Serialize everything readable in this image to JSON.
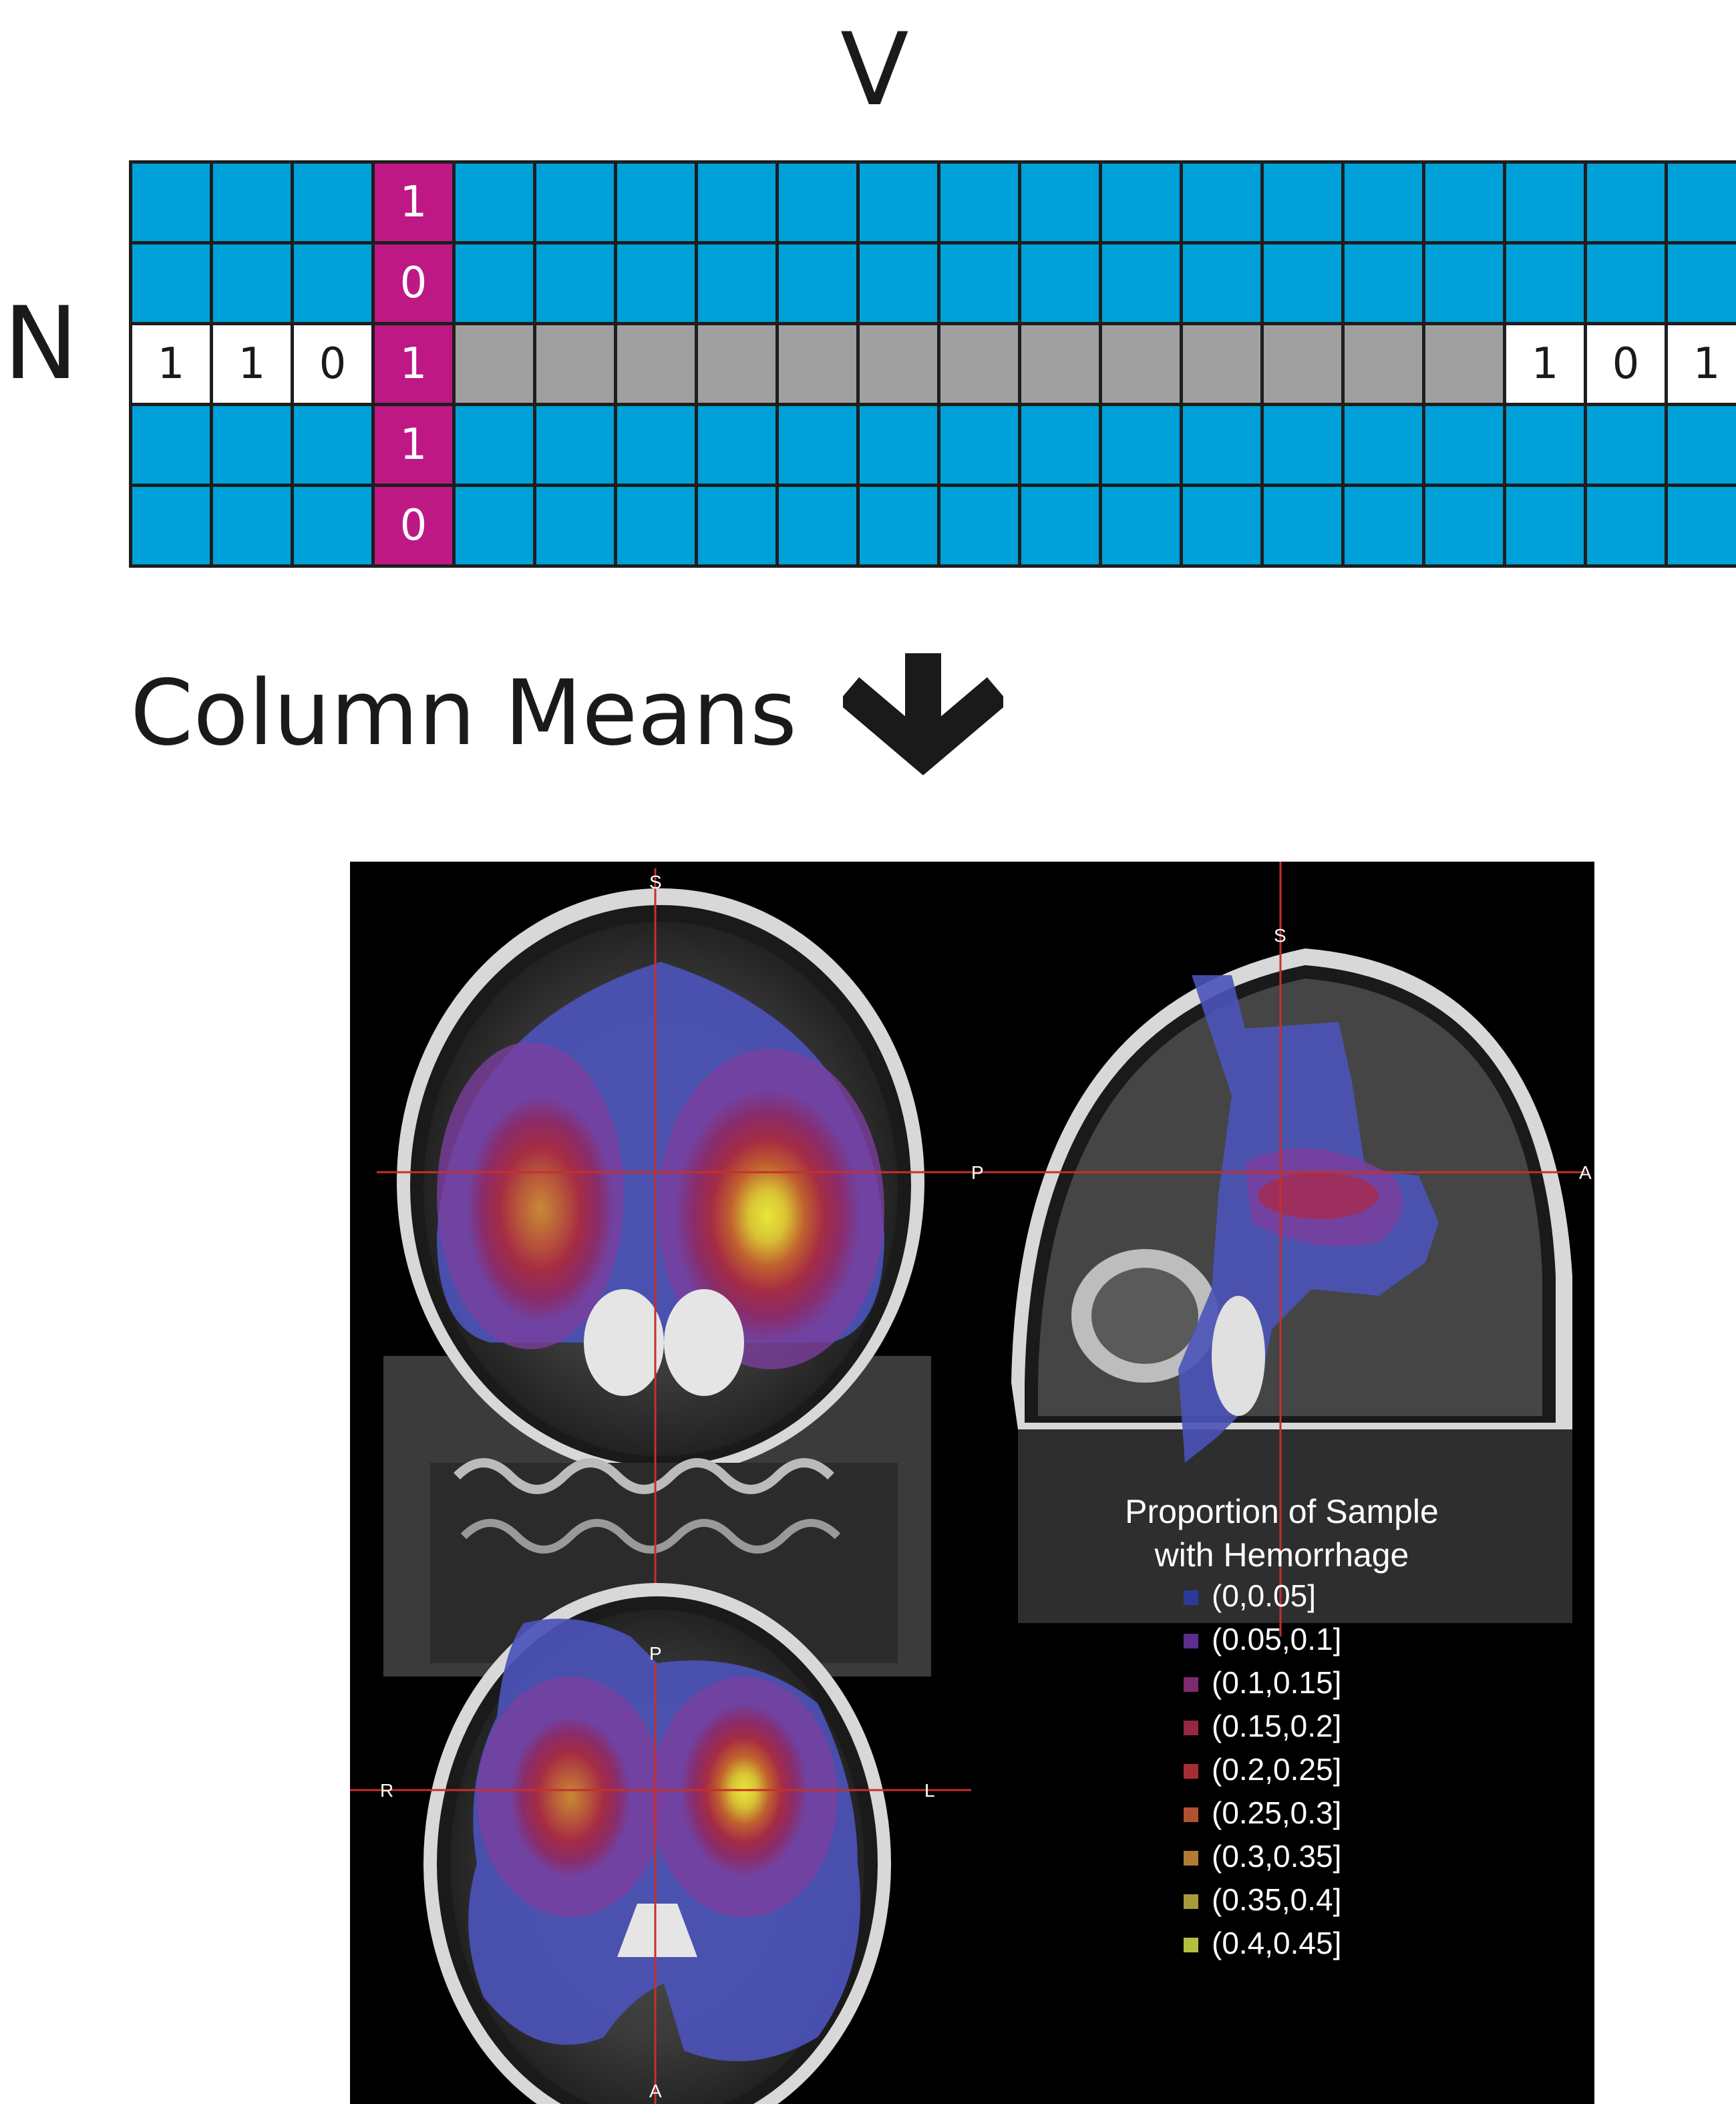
{
  "labels": {
    "v": "V",
    "n": "N",
    "column_means": "Column Means"
  },
  "icons": {
    "arrow": "down-arrow-icon"
  },
  "colors": {
    "blue": "#00a0d8",
    "magenta": "#be1884",
    "gray": "#a0a0a0",
    "white": "#ffffff",
    "grid_line": "#1e1e1e"
  },
  "matrix": {
    "rows": 5,
    "cols": 20,
    "highlight_row": 2,
    "highlight_col": 3,
    "highlight_col_values": [
      "1",
      "0",
      "1",
      "1",
      "0"
    ],
    "highlight_row_left": [
      "1",
      "1",
      "0"
    ],
    "highlight_row_right": [
      "1",
      "0",
      "1"
    ]
  },
  "brain": {
    "coronal": {
      "top": "S"
    },
    "sagittal": {
      "top": "S",
      "left": "P",
      "right": "A"
    },
    "axial": {
      "top": "P",
      "bottom": "A",
      "left": "R",
      "right": "L"
    }
  },
  "legend": {
    "title_line1": "Proportion of Sample",
    "title_line2": "with Hemorrhage",
    "items": [
      {
        "label": "(0,0.05]",
        "color": "#2d3a99"
      },
      {
        "label": "(0.05,0.1]",
        "color": "#5a2f8c"
      },
      {
        "label": "(0.1,0.15]",
        "color": "#7d2a6e"
      },
      {
        "label": "(0.15,0.2]",
        "color": "#932846"
      },
      {
        "label": "(0.2,0.25]",
        "color": "#a62d32"
      },
      {
        "label": "(0.25,0.3]",
        "color": "#b25032"
      },
      {
        "label": "(0.3,0.35]",
        "color": "#b37a34"
      },
      {
        "label": "(0.35,0.4]",
        "color": "#a89a36"
      },
      {
        "label": "(0.4,0.45]",
        "color": "#b4be40"
      }
    ]
  }
}
